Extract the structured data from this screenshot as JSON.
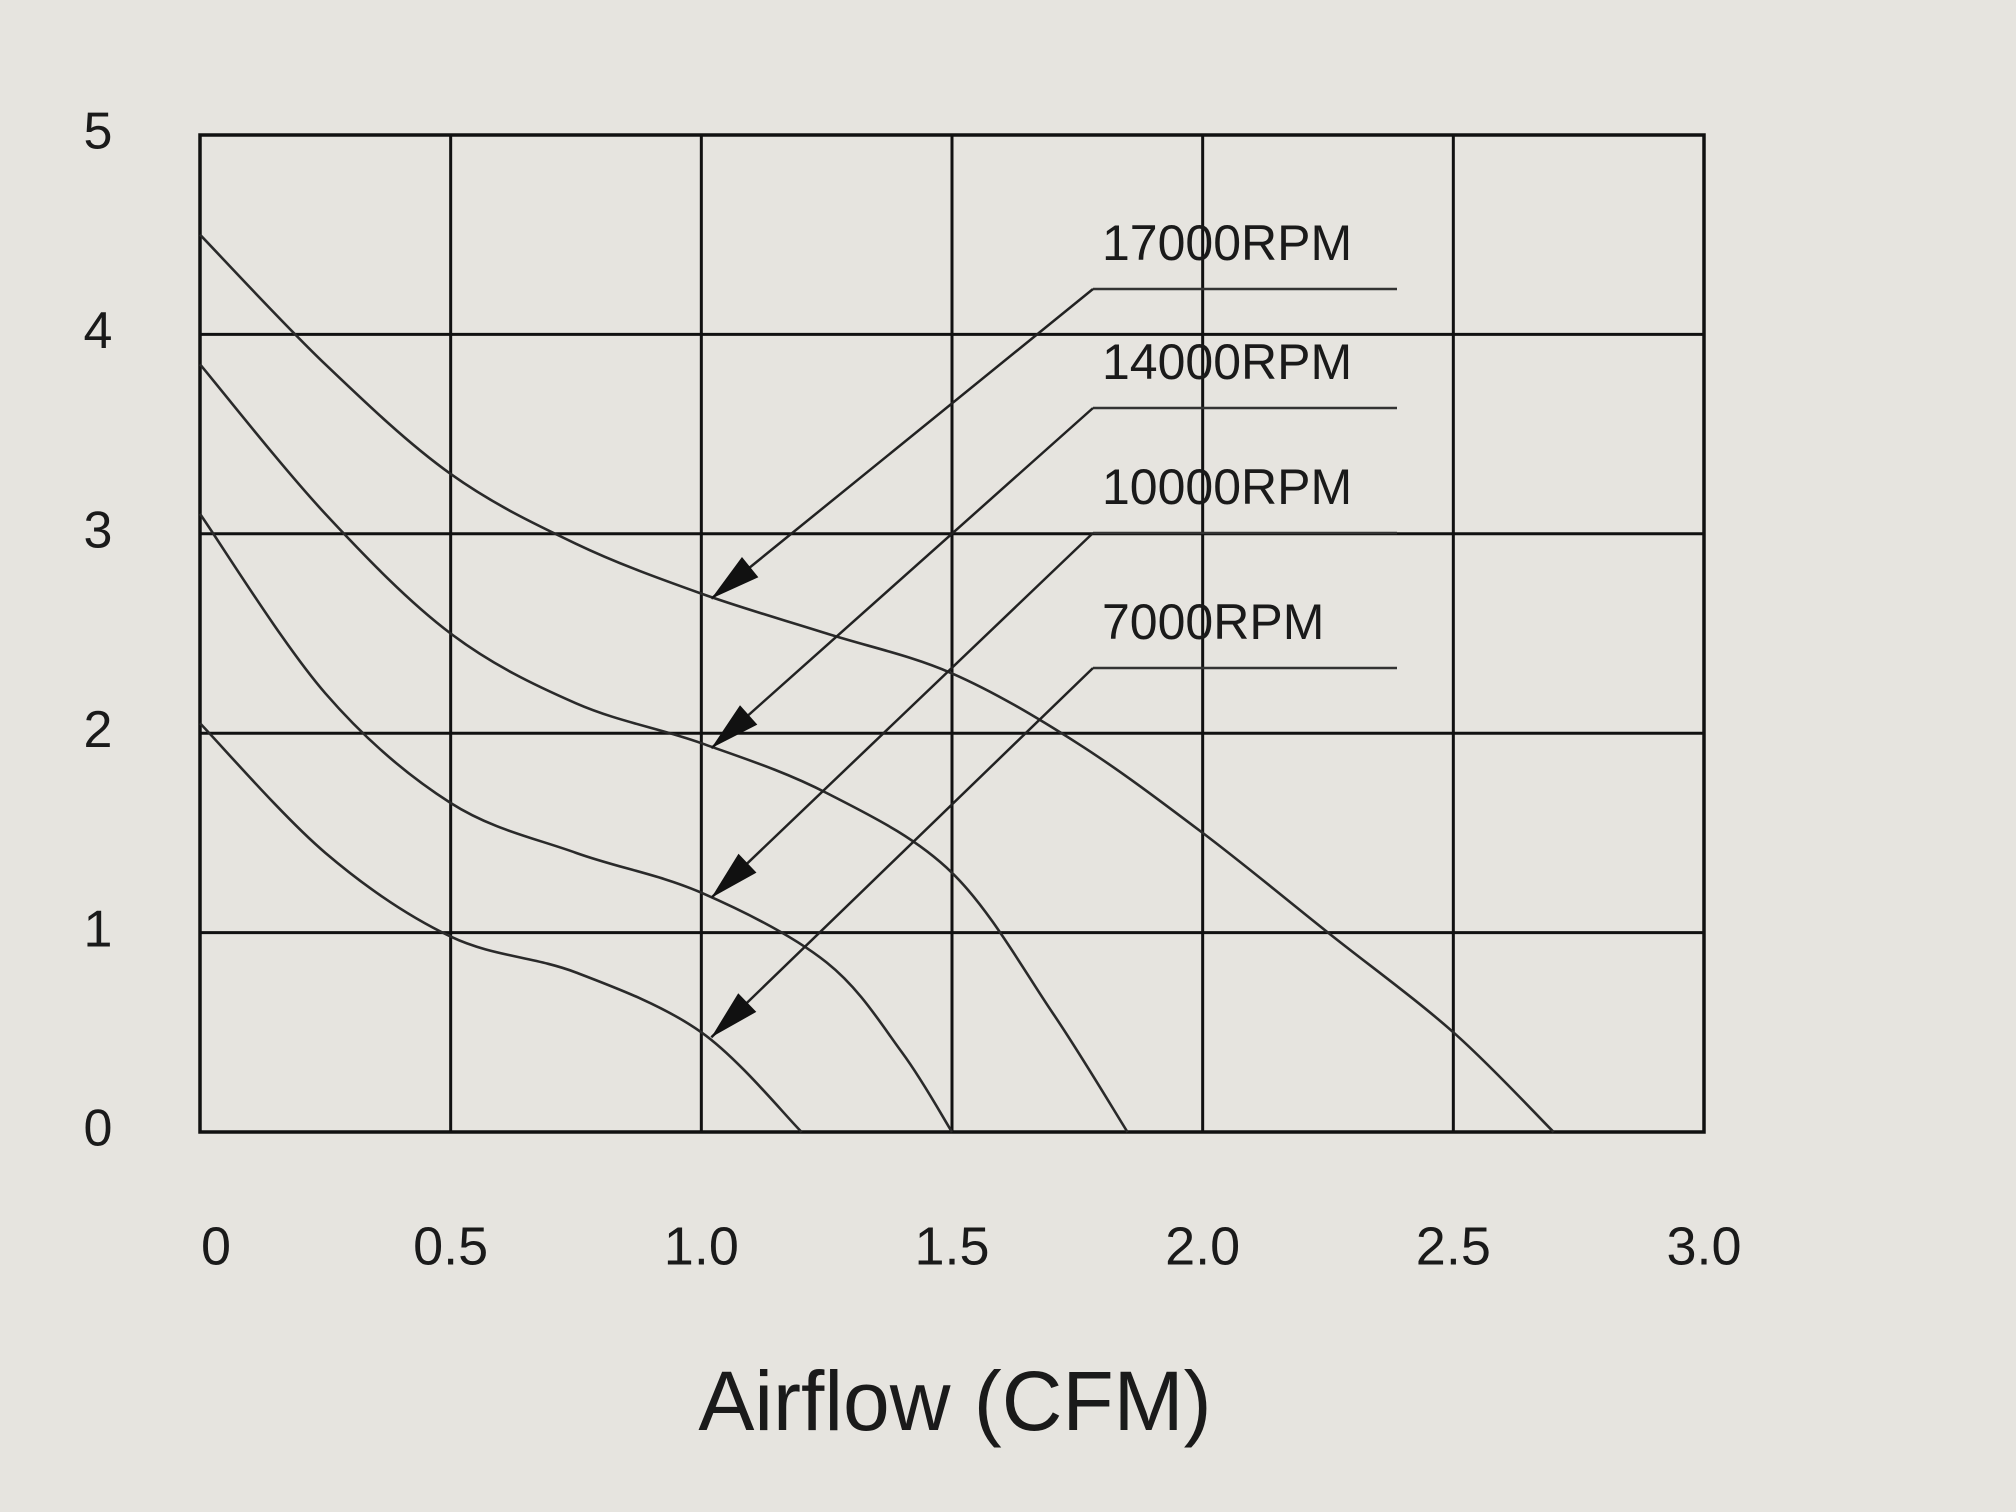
{
  "chart_data": {
    "type": "line",
    "x_label": "Airflow (CFM)",
    "xlim": [
      0,
      3
    ],
    "ylim": [
      0,
      5
    ],
    "xticks": [
      0,
      0.5,
      {
        "value": 1,
        "label": "1.0"
      },
      1.5,
      {
        "value": 2,
        "label": "2.0"
      },
      2.5,
      {
        "value": 3,
        "label": "3.0"
      }
    ],
    "yticks": [
      0,
      1,
      2,
      3,
      4,
      5
    ],
    "grid": true,
    "series": [
      {
        "name": "17000RPM",
        "color": "#2a2a2a",
        "x": [
          0,
          0.25,
          0.5,
          0.75,
          1.0,
          1.25,
          1.5,
          1.75,
          2.0,
          2.25,
          2.5,
          2.7
        ],
        "values": [
          4.5,
          3.85,
          3.3,
          2.95,
          2.7,
          2.5,
          2.3,
          1.95,
          1.5,
          1.0,
          0.5,
          0
        ]
      },
      {
        "name": "14000RPM",
        "color": "#2a2a2a",
        "x": [
          0,
          0.25,
          0.5,
          0.75,
          1.0,
          1.25,
          1.5,
          1.7,
          1.85
        ],
        "values": [
          3.85,
          3.1,
          2.5,
          2.15,
          1.95,
          1.7,
          1.3,
          0.6,
          0
        ]
      },
      {
        "name": "10000RPM",
        "color": "#2a2a2a",
        "x": [
          0,
          0.25,
          0.5,
          0.75,
          1.0,
          1.25,
          1.4,
          1.5
        ],
        "values": [
          3.1,
          2.2,
          1.65,
          1.4,
          1.2,
          0.85,
          0.4,
          0
        ]
      },
      {
        "name": "7000RPM",
        "color": "#2a2a2a",
        "x": [
          0,
          0.25,
          0.5,
          0.75,
          1.0,
          1.2
        ],
        "values": [
          2.05,
          1.4,
          0.98,
          0.8,
          0.5,
          0
        ]
      }
    ]
  }
}
